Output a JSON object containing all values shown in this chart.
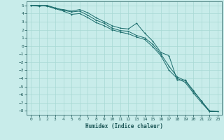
{
  "xlabel": "Humidex (Indice chaleur)",
  "ylabel": "",
  "bg_color": "#c8ecea",
  "grid_color": "#a8d8d4",
  "line_color": "#1a6b6b",
  "xlim": [
    -0.5,
    23.5
  ],
  "ylim": [
    -8.5,
    5.5
  ],
  "xticks": [
    0,
    1,
    2,
    3,
    4,
    5,
    6,
    7,
    8,
    9,
    10,
    11,
    12,
    13,
    14,
    15,
    16,
    17,
    18,
    19,
    20,
    21,
    22,
    23
  ],
  "yticks": [
    5,
    4,
    3,
    2,
    1,
    0,
    -1,
    -2,
    -3,
    -4,
    -5,
    -6,
    -7,
    -8
  ],
  "line1_x": [
    0,
    1,
    2,
    3,
    4,
    5,
    6,
    7,
    8,
    9,
    10,
    11,
    12,
    13,
    14,
    15,
    16,
    17,
    18,
    19,
    20,
    21,
    22,
    23
  ],
  "line1_y": [
    5,
    5,
    5,
    4.6,
    4.5,
    4.3,
    4.5,
    4.1,
    3.5,
    3.0,
    2.5,
    2.2,
    2.1,
    2.8,
    1.6,
    0.6,
    -0.8,
    -1.2,
    -4.2,
    -4.2,
    -5.5,
    -6.8,
    -8.1,
    -8.1
  ],
  "line2_x": [
    0,
    1,
    2,
    3,
    4,
    5,
    6,
    7,
    8,
    9,
    10,
    11,
    12,
    13,
    14,
    15,
    16,
    17,
    18,
    19,
    20,
    21,
    22,
    23
  ],
  "line2_y": [
    5,
    4.9,
    5,
    4.7,
    4.4,
    4.2,
    4.3,
    3.8,
    3.2,
    2.8,
    2.2,
    1.9,
    1.8,
    1.3,
    1.0,
    0.2,
    -1.0,
    -2.5,
    -3.8,
    -4.3,
    -5.6,
    -6.8,
    -8.0,
    -8.1
  ],
  "line3_x": [
    0,
    1,
    2,
    3,
    4,
    5,
    6,
    7,
    8,
    9,
    10,
    11,
    12,
    13,
    14,
    15,
    16,
    17,
    18,
    19,
    20,
    21,
    22,
    23
  ],
  "line3_y": [
    5,
    5,
    4.9,
    4.6,
    4.3,
    3.9,
    4.0,
    3.5,
    2.9,
    2.5,
    2.0,
    1.7,
    1.5,
    1.1,
    0.8,
    -0.1,
    -1.2,
    -3.0,
    -4.0,
    -4.5,
    -5.8,
    -7.0,
    -8.1,
    -8.1
  ]
}
